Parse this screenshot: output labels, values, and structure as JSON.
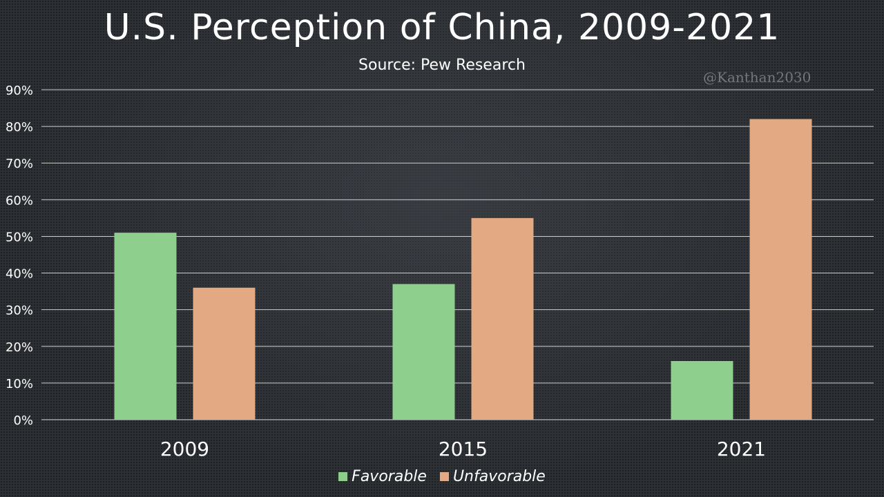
{
  "header": {
    "title": "U.S. Perception of China, 2009-2021",
    "subtitle": "Source: Pew Research",
    "watermark": "@Kanthan2030"
  },
  "chart_data": {
    "type": "bar",
    "title": "U.S. Perception of China, 2009-2021",
    "subtitle": "Source: Pew Research",
    "categories": [
      "2009",
      "2015",
      "2021"
    ],
    "series": [
      {
        "name": "Favorable",
        "values": [
          51,
          37,
          16
        ],
        "color": "#8ecf8e"
      },
      {
        "name": "Unfavorable",
        "values": [
          36,
          55,
          82
        ],
        "color": "#e2a982"
      }
    ],
    "xlabel": "",
    "ylabel": "",
    "ylim": [
      0,
      90
    ],
    "yticks": [
      "0%",
      "10%",
      "20%",
      "30%",
      "40%",
      "50%",
      "60%",
      "70%",
      "80%",
      "90%"
    ],
    "grid": true,
    "legend_position": "bottom"
  }
}
